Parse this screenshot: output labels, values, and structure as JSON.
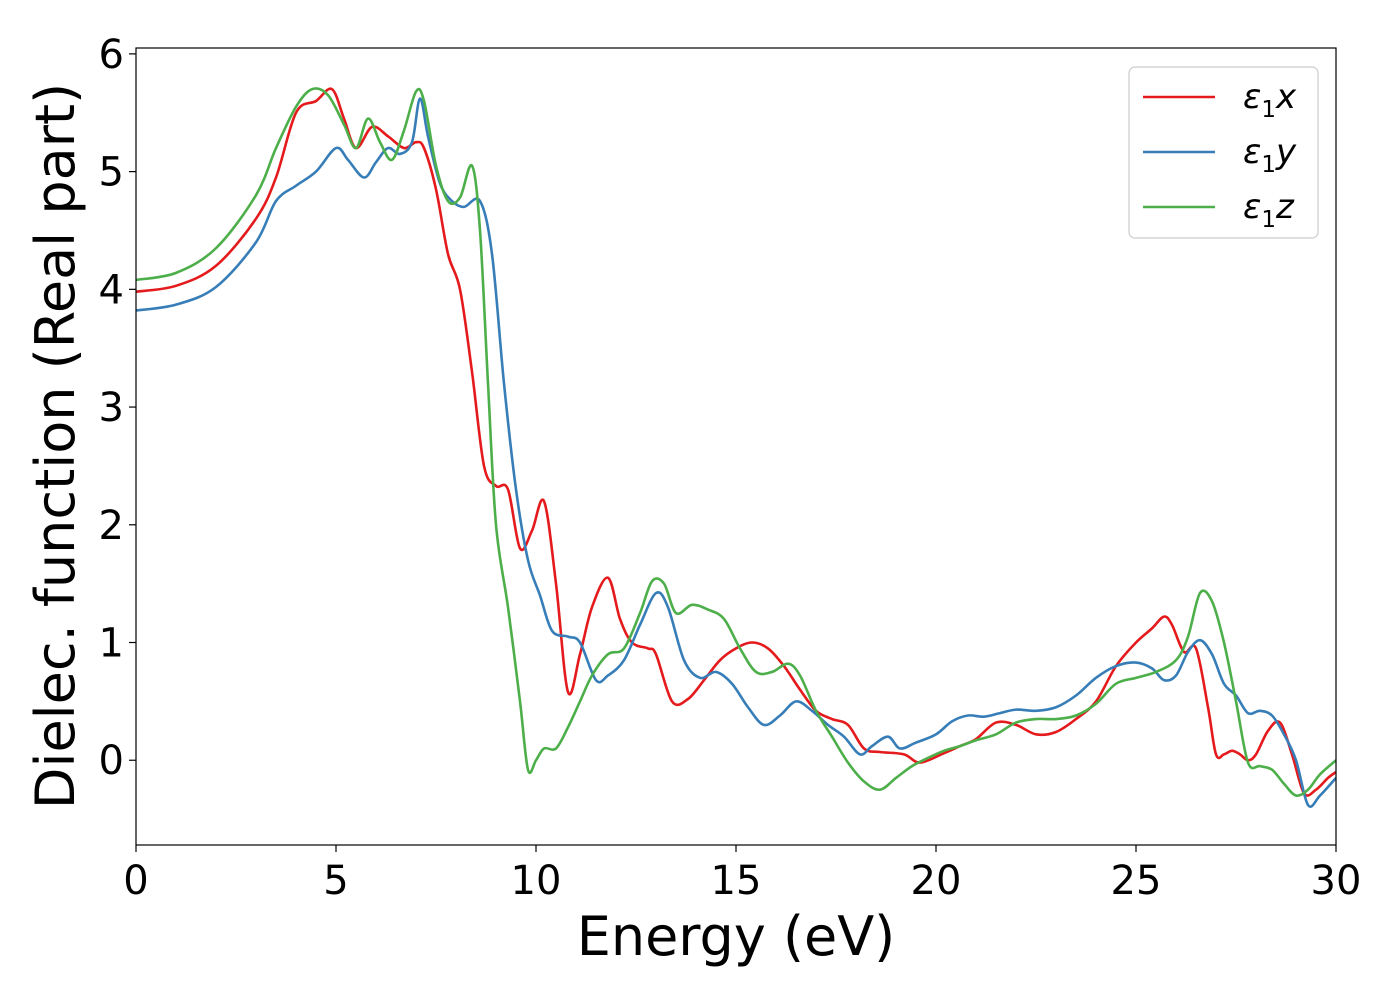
{
  "chart_data": {
    "type": "line",
    "title": "",
    "xlabel": "Energy (eV)",
    "ylabel": "Dielec. function (Real part)",
    "xlim": [
      0,
      30
    ],
    "ylim": [
      -0.72,
      6.05
    ],
    "xticks": [
      0,
      5,
      10,
      15,
      20,
      25,
      30
    ],
    "yticks": [
      0,
      1,
      2,
      3,
      4,
      5,
      6
    ],
    "grid": false,
    "legend_position": "top-right",
    "series": [
      {
        "name": "ε₁x",
        "legend_base": "ε",
        "legend_sub": "1",
        "legend_suffix": "x",
        "color": "#e41a1c",
        "x": [
          0,
          1,
          2,
          3,
          3.5,
          4,
          4.5,
          4.9,
          5.2,
          5.5,
          5.9,
          6.3,
          6.7,
          7.0,
          7.2,
          7.5,
          7.8,
          8.1,
          8.4,
          8.7,
          9.0,
          9.3,
          9.6,
          9.9,
          10.2,
          10.5,
          10.8,
          11.1,
          11.4,
          11.8,
          12.1,
          12.4,
          12.8,
          13.0,
          13.4,
          13.8,
          14.2,
          14.6,
          15.0,
          15.4,
          15.8,
          16.2,
          16.6,
          17.0,
          17.4,
          17.8,
          18.2,
          18.6,
          19.2,
          19.6,
          20.2,
          20.6,
          21.0,
          21.5,
          22.0,
          22.5,
          23.0,
          23.5,
          24.0,
          24.5,
          25.0,
          25.4,
          25.7,
          25.9,
          26.2,
          26.5,
          26.8,
          27.0,
          27.2,
          27.4,
          27.6,
          27.8,
          28.0,
          28.3,
          28.6,
          28.9,
          29.2,
          29.5,
          29.8,
          30.0
        ],
        "y": [
          3.98,
          4.03,
          4.2,
          4.6,
          4.95,
          5.5,
          5.6,
          5.7,
          5.45,
          5.2,
          5.38,
          5.3,
          5.2,
          5.25,
          5.2,
          4.85,
          4.3,
          4.0,
          3.3,
          2.5,
          2.33,
          2.3,
          1.8,
          1.95,
          2.2,
          1.5,
          0.58,
          0.9,
          1.3,
          1.55,
          1.2,
          1.0,
          0.95,
          0.9,
          0.5,
          0.52,
          0.68,
          0.85,
          0.95,
          1.0,
          0.95,
          0.8,
          0.6,
          0.42,
          0.35,
          0.3,
          0.1,
          0.07,
          0.05,
          -0.02,
          0.06,
          0.12,
          0.18,
          0.32,
          0.3,
          0.22,
          0.24,
          0.35,
          0.5,
          0.8,
          1.0,
          1.12,
          1.22,
          1.15,
          0.92,
          0.95,
          0.45,
          0.05,
          0.05,
          0.08,
          0.05,
          0.0,
          0.05,
          0.25,
          0.32,
          0.05,
          -0.28,
          -0.25,
          -0.15,
          -0.1
        ]
      },
      {
        "name": "ε₁y",
        "legend_base": "ε",
        "legend_sub": "1",
        "legend_suffix": "y",
        "color": "#377eb8",
        "x": [
          0,
          1,
          2,
          3,
          3.5,
          4,
          4.5,
          5.0,
          5.3,
          5.7,
          6.0,
          6.3,
          6.6,
          6.9,
          7.1,
          7.3,
          7.6,
          7.9,
          8.2,
          8.6,
          8.9,
          9.2,
          9.5,
          9.8,
          10.1,
          10.4,
          10.8,
          11.1,
          11.5,
          11.8,
          12.2,
          12.6,
          13.0,
          13.3,
          13.7,
          14.1,
          14.5,
          14.9,
          15.3,
          15.7,
          16.1,
          16.5,
          16.9,
          17.3,
          17.7,
          18.1,
          18.4,
          18.8,
          19.1,
          19.5,
          20.0,
          20.4,
          20.8,
          21.2,
          21.6,
          22.0,
          22.5,
          23.0,
          23.5,
          24.0,
          24.5,
          25.0,
          25.4,
          25.7,
          26.0,
          26.3,
          26.6,
          26.9,
          27.2,
          27.5,
          27.8,
          28.1,
          28.4,
          28.7,
          29.0,
          29.3,
          29.6,
          30.0
        ],
        "y": [
          3.82,
          3.87,
          4.02,
          4.4,
          4.75,
          4.88,
          5.0,
          5.2,
          5.1,
          4.95,
          5.08,
          5.2,
          5.15,
          5.25,
          5.62,
          5.3,
          4.9,
          4.75,
          4.7,
          4.75,
          4.3,
          3.2,
          2.3,
          1.7,
          1.4,
          1.1,
          1.05,
          1.0,
          0.68,
          0.72,
          0.85,
          1.15,
          1.42,
          1.3,
          0.85,
          0.7,
          0.75,
          0.65,
          0.45,
          0.3,
          0.38,
          0.5,
          0.42,
          0.3,
          0.2,
          0.05,
          0.12,
          0.2,
          0.1,
          0.15,
          0.22,
          0.33,
          0.38,
          0.37,
          0.4,
          0.43,
          0.42,
          0.45,
          0.55,
          0.7,
          0.8,
          0.83,
          0.78,
          0.68,
          0.72,
          0.92,
          1.02,
          0.9,
          0.65,
          0.55,
          0.4,
          0.42,
          0.38,
          0.22,
          0.0,
          -0.38,
          -0.3,
          -0.15
        ]
      },
      {
        "name": "ε₁z",
        "legend_base": "ε",
        "legend_sub": "1",
        "legend_suffix": "z",
        "color": "#4daf4a",
        "x": [
          0,
          1,
          2,
          3,
          3.5,
          4,
          4.4,
          4.8,
          5.2,
          5.5,
          5.8,
          6.1,
          6.4,
          6.7,
          7.0,
          7.2,
          7.5,
          7.8,
          8.1,
          8.4,
          8.6,
          8.8,
          9.0,
          9.3,
          9.6,
          9.8,
          10.0,
          10.2,
          10.5,
          10.8,
          11.1,
          11.4,
          11.8,
          12.2,
          12.6,
          12.9,
          13.2,
          13.5,
          13.9,
          14.3,
          14.7,
          15.1,
          15.5,
          15.9,
          16.3,
          16.6,
          17.0,
          17.4,
          17.8,
          18.2,
          18.6,
          19.0,
          19.4,
          19.8,
          20.2,
          20.6,
          21.0,
          21.5,
          22.0,
          22.5,
          23.0,
          23.5,
          24.0,
          24.5,
          25.0,
          25.5,
          26.0,
          26.3,
          26.6,
          26.9,
          27.2,
          27.5,
          27.8,
          28.1,
          28.4,
          28.7,
          29.0,
          29.3,
          29.6,
          30.0
        ],
        "y": [
          4.08,
          4.14,
          4.35,
          4.8,
          5.2,
          5.55,
          5.7,
          5.65,
          5.4,
          5.2,
          5.45,
          5.25,
          5.1,
          5.35,
          5.68,
          5.6,
          5.05,
          4.75,
          4.78,
          5.05,
          4.5,
          3.2,
          2.0,
          1.3,
          0.5,
          -0.08,
          0.0,
          0.1,
          0.1,
          0.28,
          0.5,
          0.72,
          0.9,
          0.95,
          1.25,
          1.52,
          1.5,
          1.25,
          1.32,
          1.28,
          1.2,
          0.95,
          0.75,
          0.75,
          0.82,
          0.72,
          0.42,
          0.2,
          -0.02,
          -0.18,
          -0.25,
          -0.15,
          -0.05,
          0.02,
          0.08,
          0.12,
          0.17,
          0.22,
          0.32,
          0.35,
          0.35,
          0.38,
          0.48,
          0.65,
          0.7,
          0.75,
          0.85,
          1.05,
          1.42,
          1.35,
          1.0,
          0.5,
          -0.02,
          -0.05,
          -0.08,
          -0.2,
          -0.3,
          -0.25,
          -0.12,
          0.0
        ]
      }
    ]
  }
}
